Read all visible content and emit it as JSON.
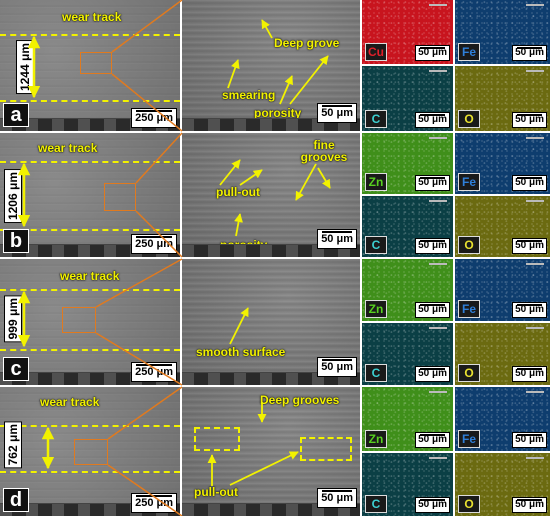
{
  "rows": [
    {
      "letter": "a",
      "wear_track_label": "wear track",
      "track_width": "1244 μm",
      "low_mag_scale": "250 μm",
      "high_mag_scale": "50 μm",
      "annotations": [
        "Deep grove",
        "smearing",
        "porosity"
      ],
      "eds": [
        {
          "element": "Cu",
          "scale": "50 μm",
          "label_color": "#e0202a"
        },
        {
          "element": "Fe",
          "scale": "50 μm",
          "label_color": "#2f7fd8"
        },
        {
          "element": "C",
          "scale": "50 μm",
          "label_color": "#3ccfd0"
        },
        {
          "element": "O",
          "scale": "50 μm",
          "label_color": "#e8e030"
        }
      ]
    },
    {
      "letter": "b",
      "wear_track_label": "wear track",
      "track_width": "1206 μm",
      "low_mag_scale": "250 μm",
      "high_mag_scale": "50 μm",
      "annotations": [
        "fine grooves",
        "pull-out",
        "porosity"
      ],
      "eds": [
        {
          "element": "Zn",
          "scale": "50 μm",
          "label_color": "#58d020"
        },
        {
          "element": "Fe",
          "scale": "50 μm",
          "label_color": "#2f7fd8"
        },
        {
          "element": "C",
          "scale": "50 μm",
          "label_color": "#3ccfd0"
        },
        {
          "element": "O",
          "scale": "50 μm",
          "label_color": "#e8e030"
        }
      ]
    },
    {
      "letter": "c",
      "wear_track_label": "wear track",
      "track_width": "999 μm",
      "low_mag_scale": "250 μm",
      "high_mag_scale": "50 μm",
      "annotations": [
        "smooth surface"
      ],
      "eds": [
        {
          "element": "Zn",
          "scale": "50 μm",
          "label_color": "#58d020"
        },
        {
          "element": "Fe",
          "scale": "50 μm",
          "label_color": "#2f7fd8"
        },
        {
          "element": "C",
          "scale": "50 μm",
          "label_color": "#3ccfd0"
        },
        {
          "element": "O",
          "scale": "50 μm",
          "label_color": "#e8e030"
        }
      ]
    },
    {
      "letter": "d",
      "wear_track_label": "wear track",
      "track_width": "762 μm",
      "low_mag_scale": "250 μm",
      "high_mag_scale": "50 μm",
      "annotations": [
        "Deep grooves",
        "pull-out"
      ],
      "eds": [
        {
          "element": "Zn",
          "scale": "50 μm",
          "label_color": "#58d020"
        },
        {
          "element": "Fe",
          "scale": "50 μm",
          "label_color": "#2f7fd8"
        },
        {
          "element": "C",
          "scale": "50 μm",
          "label_color": "#3ccfd0"
        },
        {
          "element": "O",
          "scale": "50 μm",
          "label_color": "#e8e030"
        }
      ]
    }
  ],
  "colors": {
    "annotation": "#f2f200",
    "zoom_box": "#e07a1f"
  }
}
